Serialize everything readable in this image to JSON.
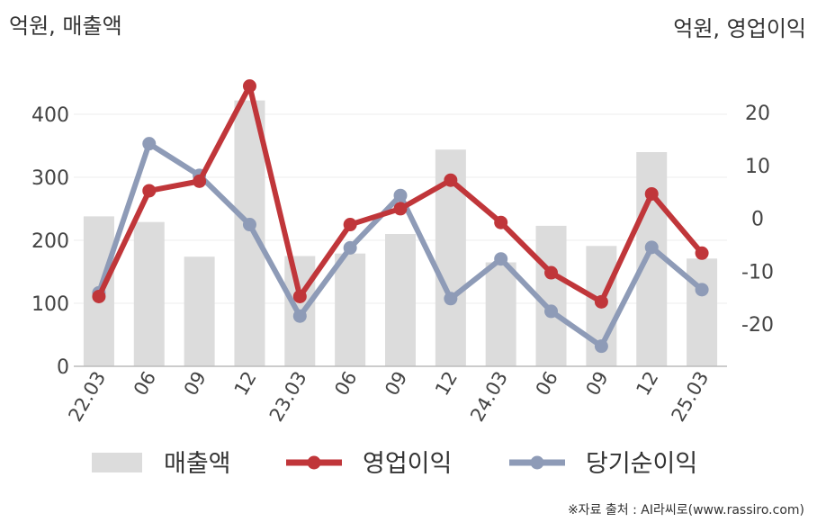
{
  "chart_data": {
    "type": "bar+line",
    "categories": [
      "22.03",
      "06",
      "09",
      "12",
      "23.03",
      "06",
      "09",
      "12",
      "24.03",
      "06",
      "09",
      "12",
      "25.03"
    ],
    "left_axis": {
      "unit_label": "억원, 매출액",
      "ticks": [
        "0",
        "100",
        "200",
        "300",
        "400"
      ],
      "range": [
        0,
        470
      ]
    },
    "right_axis": {
      "unit_label": "억원, 영업이익",
      "ticks": [
        "20",
        "10",
        "0",
        "-10",
        "-20"
      ],
      "range": [
        -28,
        28
      ]
    },
    "series": [
      {
        "name": "매출액",
        "kind": "bar",
        "axis": "left",
        "color": "#dcdcdc",
        "values": [
          238,
          229,
          174,
          422,
          175,
          179,
          210,
          344,
          165,
          223,
          191,
          340,
          171
        ]
      },
      {
        "name": "영업이익",
        "kind": "line",
        "axis": "right",
        "color": "#c0363a",
        "values": [
          -14.8,
          5.2,
          7.0,
          25.0,
          -14.8,
          -1.2,
          1.8,
          7.2,
          -0.8,
          -10.3,
          -15.8,
          4.6,
          -6.6
        ]
      },
      {
        "name": "당기순이익",
        "kind": "line",
        "axis": "right",
        "color": "#8e9bb7",
        "values": [
          -14.1,
          14.1,
          8.1,
          -1.2,
          -18.5,
          -5.6,
          4.3,
          -15.2,
          -7.7,
          -17.6,
          -24.2,
          -5.5,
          -13.5
        ]
      }
    ]
  },
  "source_text": "※자료 출처 : AI라씨로(www.rassiro.com)"
}
